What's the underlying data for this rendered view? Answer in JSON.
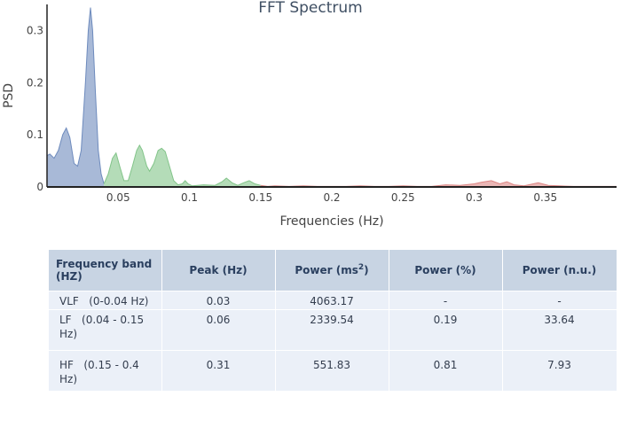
{
  "chart_data": {
    "type": "area",
    "title": "FFT Spectrum",
    "xlabel": "Frequencies (Hz)",
    "ylabel": "PSD",
    "xlim": [
      0.0,
      0.4
    ],
    "ylim": [
      0,
      0.35
    ],
    "xticks": [
      0.05,
      0.1,
      0.15,
      0.2,
      0.25,
      0.3,
      0.35
    ],
    "xtick_labels": [
      "0.05",
      "0.1",
      "0.15",
      "0.2",
      "0.25",
      "0.3",
      "0.35"
    ],
    "yticks": [
      0,
      0.1,
      0.2,
      0.3
    ],
    "ytick_labels": [
      "0",
      "0.1",
      "0.2",
      "0.3"
    ],
    "grid": false,
    "legend": "none",
    "series": [
      {
        "band": "VLF",
        "color": "#6e8bbd",
        "points": [
          [
            0.0,
            0.06
          ],
          [
            0.002,
            0.063
          ],
          [
            0.005,
            0.055
          ],
          [
            0.008,
            0.07
          ],
          [
            0.011,
            0.1
          ],
          [
            0.0135,
            0.113
          ],
          [
            0.016,
            0.095
          ],
          [
            0.019,
            0.045
          ],
          [
            0.0215,
            0.04
          ],
          [
            0.024,
            0.07
          ],
          [
            0.027,
            0.2
          ],
          [
            0.029,
            0.3
          ],
          [
            0.0305,
            0.344
          ],
          [
            0.032,
            0.3
          ],
          [
            0.034,
            0.18
          ],
          [
            0.036,
            0.07
          ],
          [
            0.038,
            0.025
          ],
          [
            0.04,
            0.006
          ]
        ]
      },
      {
        "band": "LF",
        "color": "#82c489",
        "points": [
          [
            0.04,
            0.006
          ],
          [
            0.043,
            0.025
          ],
          [
            0.046,
            0.055
          ],
          [
            0.0485,
            0.065
          ],
          [
            0.051,
            0.04
          ],
          [
            0.054,
            0.012
          ],
          [
            0.057,
            0.012
          ],
          [
            0.06,
            0.04
          ],
          [
            0.063,
            0.07
          ],
          [
            0.065,
            0.08
          ],
          [
            0.067,
            0.07
          ],
          [
            0.07,
            0.04
          ],
          [
            0.072,
            0.03
          ],
          [
            0.075,
            0.045
          ],
          [
            0.078,
            0.07
          ],
          [
            0.0805,
            0.074
          ],
          [
            0.083,
            0.068
          ],
          [
            0.086,
            0.04
          ],
          [
            0.089,
            0.012
          ],
          [
            0.092,
            0.004
          ],
          [
            0.095,
            0.006
          ],
          [
            0.097,
            0.012
          ],
          [
            0.099,
            0.006
          ],
          [
            0.102,
            0.002
          ],
          [
            0.11,
            0.004
          ],
          [
            0.118,
            0.003
          ],
          [
            0.123,
            0.01
          ],
          [
            0.126,
            0.017
          ],
          [
            0.13,
            0.008
          ],
          [
            0.134,
            0.003
          ],
          [
            0.138,
            0.008
          ],
          [
            0.142,
            0.012
          ],
          [
            0.146,
            0.006
          ],
          [
            0.15,
            0.003
          ]
        ]
      },
      {
        "band": "HF",
        "color": "#dc8583",
        "points": [
          [
            0.15,
            0.003
          ],
          [
            0.155,
            0.001
          ],
          [
            0.16,
            0.002
          ],
          [
            0.17,
            0.001
          ],
          [
            0.18,
            0.002
          ],
          [
            0.19,
            0.001
          ],
          [
            0.2,
            0.001
          ],
          [
            0.21,
            0.001
          ],
          [
            0.22,
            0.002
          ],
          [
            0.23,
            0.001
          ],
          [
            0.24,
            0.001
          ],
          [
            0.25,
            0.002
          ],
          [
            0.26,
            0.001
          ],
          [
            0.27,
            0.001
          ],
          [
            0.28,
            0.004
          ],
          [
            0.29,
            0.003
          ],
          [
            0.3,
            0.006
          ],
          [
            0.305,
            0.009
          ],
          [
            0.312,
            0.012
          ],
          [
            0.318,
            0.006
          ],
          [
            0.323,
            0.01
          ],
          [
            0.328,
            0.004
          ],
          [
            0.335,
            0.002
          ],
          [
            0.345,
            0.008
          ],
          [
            0.352,
            0.003
          ],
          [
            0.36,
            0.002
          ],
          [
            0.37,
            0.001
          ],
          [
            0.38,
            0.001
          ],
          [
            0.39,
            0.001
          ],
          [
            0.4,
            0.001
          ]
        ]
      }
    ]
  },
  "table": {
    "headers": [
      "Frequency band\n(HZ)",
      "Peak (Hz)",
      "Power (ms",
      "Power (%)",
      "Power (n.u.)"
    ],
    "power_unit_sup": "2",
    "power_unit_close": ")",
    "rows": [
      [
        "VLF   (0-0.04 Hz)",
        "0.03",
        "4063.17",
        "-",
        "-"
      ],
      [
        "LF   (0.04 - 0.15\nHz)",
        "0.06",
        "2339.54",
        "0.19",
        "33.64"
      ],
      [
        "HF   (0.15 - 0.4\nHz)",
        "0.31",
        "551.83",
        "0.81",
        "7.93"
      ]
    ]
  }
}
